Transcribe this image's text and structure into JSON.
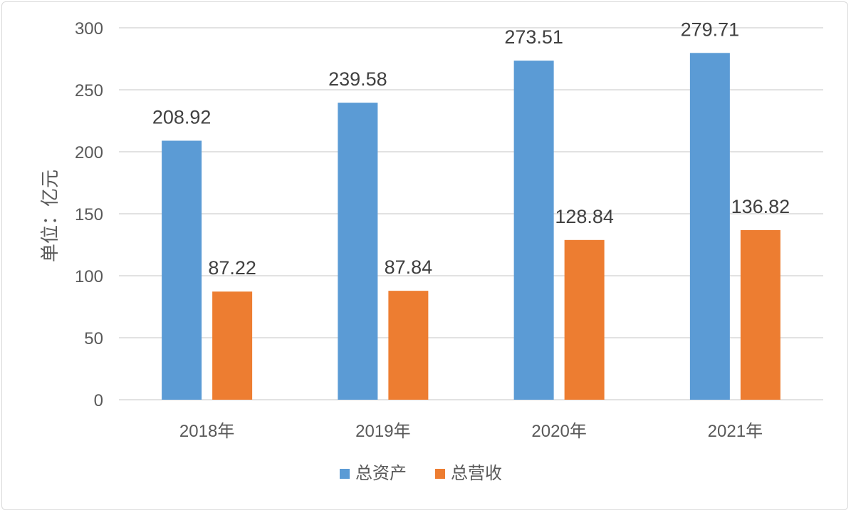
{
  "chart_data": {
    "type": "bar",
    "categories": [
      "2018年",
      "2019年",
      "2020年",
      "2021年"
    ],
    "series": [
      {
        "name": "总资产",
        "values": [
          208.92,
          239.58,
          273.51,
          279.71
        ],
        "value_labels": [
          "208.92",
          "239.58",
          "273.51",
          "279.71"
        ],
        "color": "#5b9bd5"
      },
      {
        "name": "总营收",
        "values": [
          87.22,
          87.84,
          128.84,
          136.82
        ],
        "value_labels": [
          "87.22",
          "87.84",
          "128.84",
          "136.82"
        ],
        "color": "#ed7d31"
      }
    ],
    "title": "",
    "xlabel": "",
    "ylabel": "单位：亿元",
    "ylim": [
      0,
      300
    ],
    "yticks": [
      "0",
      "50",
      "100",
      "150",
      "200",
      "250",
      "300"
    ],
    "grid": true,
    "gridline_color": "#d9d9d9",
    "legend_position": "bottom"
  }
}
